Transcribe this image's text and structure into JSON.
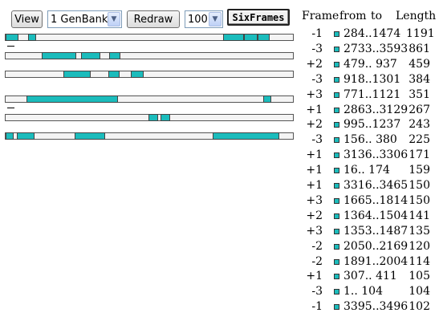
{
  "toolbar": {
    "view_label": "View",
    "genbank_select": "1 GenBank",
    "redraw_label": "Redraw",
    "count_select": "100",
    "sixframes_label": "SixFrames"
  },
  "colors": {
    "orf_fill": "#1bbcbc",
    "track_fill": "#f4f4f4"
  },
  "table": {
    "headers": {
      "frame": "Frame",
      "from": "from",
      "to": "to",
      "length": "Length"
    },
    "rows": [
      {
        "frame": "-1",
        "range": " 284..1474",
        "length": "1191"
      },
      {
        "frame": "-3",
        "range": "2733..3593",
        "length": "861"
      },
      {
        "frame": "+2",
        "range": " 479..  937",
        "length": "459"
      },
      {
        "frame": "-3",
        "range": " 918..1301",
        "length": "384"
      },
      {
        "frame": "+3",
        "range": " 771..1121",
        "length": "351"
      },
      {
        "frame": "+1",
        "range": "2863..3129",
        "length": "267"
      },
      {
        "frame": "+2",
        "range": " 995..1237",
        "length": "243"
      },
      {
        "frame": "-3",
        "range": " 156..  380",
        "length": "225"
      },
      {
        "frame": "+1",
        "range": "3136..3306",
        "length": "171"
      },
      {
        "frame": "+1",
        "range": "  16..  174",
        "length": "159"
      },
      {
        "frame": "+1",
        "range": "3316..3465",
        "length": "150"
      },
      {
        "frame": "+3",
        "range": "1665..1814",
        "length": "150"
      },
      {
        "frame": "+2",
        "range": "1364..1504",
        "length": "141"
      },
      {
        "frame": "+3",
        "range": "1353..1487",
        "length": "135"
      },
      {
        "frame": "-2",
        "range": "2050..2169",
        "length": "120"
      },
      {
        "frame": "-2",
        "range": "1891..2004",
        "length": "114"
      },
      {
        "frame": "+1",
        "range": " 307..  411",
        "length": "105"
      },
      {
        "frame": "-3",
        "range": "   1..  104",
        "length": "104"
      },
      {
        "frame": "-1",
        "range": "3395..3496",
        "length": "102"
      }
    ]
  }
}
